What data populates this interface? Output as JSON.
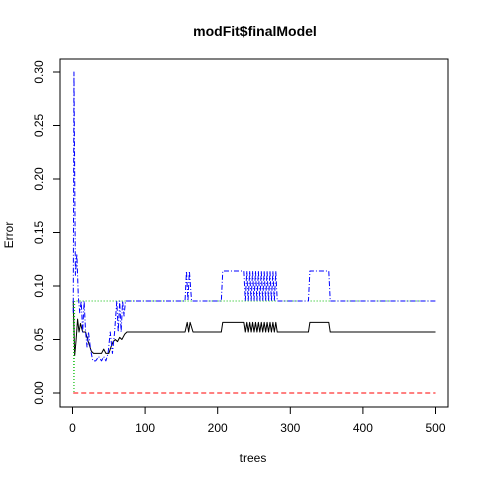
{
  "chart_data": {
    "type": "line",
    "title": "modFit$finalModel",
    "xlabel": "trees",
    "ylabel": "Error",
    "xlim": [
      0,
      500
    ],
    "ylim": [
      0,
      0.3
    ],
    "x_ticks": [
      "0",
      "100",
      "200",
      "300",
      "400",
      "500"
    ],
    "y_ticks": [
      "0.00",
      "0.05",
      "0.10",
      "0.15",
      "0.20",
      "0.25",
      "0.30"
    ],
    "grid": false,
    "legend": "none",
    "series": [
      {
        "color": "#000000",
        "dash": "solid",
        "points": [
          [
            1,
            0.086
          ],
          [
            3,
            0.035
          ],
          [
            5,
            0.05
          ],
          [
            7,
            0.069
          ],
          [
            9,
            0.057
          ],
          [
            11,
            0.065
          ],
          [
            14,
            0.057
          ],
          [
            18,
            0.057
          ],
          [
            20,
            0.052
          ],
          [
            23,
            0.045
          ],
          [
            26,
            0.039
          ],
          [
            29,
            0.037
          ],
          [
            35,
            0.037
          ],
          [
            40,
            0.037
          ],
          [
            43,
            0.041
          ],
          [
            46,
            0.037
          ],
          [
            50,
            0.037
          ],
          [
            53,
            0.043
          ],
          [
            56,
            0.048
          ],
          [
            59,
            0.05
          ],
          [
            62,
            0.048
          ],
          [
            65,
            0.052
          ],
          [
            68,
            0.05
          ],
          [
            72,
            0.055
          ],
          [
            75,
            0.057
          ],
          [
            155,
            0.057
          ],
          [
            158,
            0.066
          ],
          [
            160,
            0.057
          ],
          [
            162,
            0.066
          ],
          [
            166,
            0.057
          ],
          [
            205,
            0.057
          ],
          [
            207,
            0.066
          ],
          [
            236,
            0.066
          ],
          [
            238,
            0.057
          ],
          [
            240,
            0.066
          ],
          [
            242,
            0.057
          ],
          [
            244,
            0.066
          ],
          [
            246,
            0.057
          ],
          [
            248,
            0.066
          ],
          [
            250,
            0.057
          ],
          [
            252,
            0.066
          ],
          [
            254,
            0.057
          ],
          [
            256,
            0.066
          ],
          [
            258,
            0.057
          ],
          [
            260,
            0.066
          ],
          [
            262,
            0.057
          ],
          [
            264,
            0.066
          ],
          [
            266,
            0.057
          ],
          [
            268,
            0.066
          ],
          [
            270,
            0.057
          ],
          [
            272,
            0.066
          ],
          [
            274,
            0.057
          ],
          [
            276,
            0.066
          ],
          [
            278,
            0.057
          ],
          [
            280,
            0.066
          ],
          [
            282,
            0.057
          ],
          [
            325,
            0.057
          ],
          [
            327,
            0.066
          ],
          [
            353,
            0.066
          ],
          [
            355,
            0.057
          ],
          [
            500,
            0.057
          ]
        ]
      },
      {
        "color": "#ff0000",
        "dash": "dashed",
        "points": [
          [
            1,
            0.0
          ],
          [
            500,
            0.0
          ]
        ]
      },
      {
        "color": "#00bb00",
        "dash": "dotted",
        "points": [
          [
            1,
            0.086
          ],
          [
            2,
            0.0
          ],
          [
            3,
            0.086
          ],
          [
            500,
            0.086
          ]
        ]
      },
      {
        "color": "#0000ff",
        "dash": "dashdot",
        "points": [
          [
            1,
            0.075
          ],
          [
            2,
            0.3
          ],
          [
            4,
            0.11
          ],
          [
            6,
            0.13
          ],
          [
            8,
            0.09
          ],
          [
            10,
            0.075
          ],
          [
            12,
            0.086
          ],
          [
            14,
            0.057
          ],
          [
            16,
            0.086
          ],
          [
            18,
            0.057
          ],
          [
            20,
            0.043
          ],
          [
            22,
            0.057
          ],
          [
            25,
            0.04
          ],
          [
            28,
            0.03
          ],
          [
            32,
            0.03
          ],
          [
            36,
            0.034
          ],
          [
            40,
            0.03
          ],
          [
            43,
            0.034
          ],
          [
            46,
            0.03
          ],
          [
            49,
            0.037
          ],
          [
            52,
            0.057
          ],
          [
            55,
            0.037
          ],
          [
            58,
            0.057
          ],
          [
            61,
            0.086
          ],
          [
            63,
            0.057
          ],
          [
            65,
            0.086
          ],
          [
            67,
            0.057
          ],
          [
            69,
            0.086
          ],
          [
            71,
            0.072
          ],
          [
            73,
            0.086
          ],
          [
            155,
            0.086
          ],
          [
            157,
            0.114
          ],
          [
            159,
            0.086
          ],
          [
            161,
            0.114
          ],
          [
            164,
            0.086
          ],
          [
            205,
            0.086
          ],
          [
            207,
            0.114
          ],
          [
            236,
            0.114
          ],
          [
            238,
            0.086
          ],
          [
            240,
            0.114
          ],
          [
            242,
            0.086
          ],
          [
            244,
            0.114
          ],
          [
            246,
            0.086
          ],
          [
            248,
            0.114
          ],
          [
            250,
            0.086
          ],
          [
            252,
            0.114
          ],
          [
            254,
            0.086
          ],
          [
            256,
            0.114
          ],
          [
            258,
            0.086
          ],
          [
            260,
            0.114
          ],
          [
            262,
            0.086
          ],
          [
            264,
            0.114
          ],
          [
            266,
            0.086
          ],
          [
            268,
            0.114
          ],
          [
            270,
            0.086
          ],
          [
            272,
            0.114
          ],
          [
            274,
            0.086
          ],
          [
            276,
            0.114
          ],
          [
            278,
            0.086
          ],
          [
            280,
            0.114
          ],
          [
            282,
            0.086
          ],
          [
            325,
            0.086
          ],
          [
            327,
            0.114
          ],
          [
            353,
            0.114
          ],
          [
            355,
            0.086
          ],
          [
            500,
            0.086
          ]
        ]
      }
    ]
  }
}
